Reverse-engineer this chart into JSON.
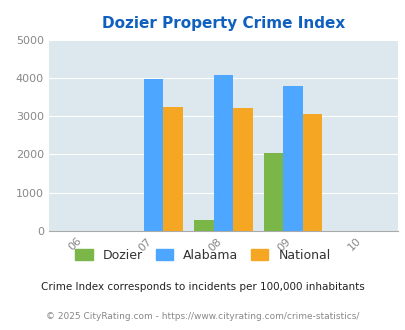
{
  "title": "Dozier Property Crime Index",
  "title_color": "#1060bf",
  "years": [
    2006,
    2007,
    2008,
    2009,
    2010
  ],
  "bar_years": [
    2007,
    2008,
    2009
  ],
  "dozier": [
    0,
    300,
    2050
  ],
  "alabama": [
    3970,
    4080,
    3775
  ],
  "national": [
    3250,
    3220,
    3050
  ],
  "dozier_color": "#7ab648",
  "alabama_color": "#4da6ff",
  "national_color": "#f5a623",
  "ylim": [
    0,
    5000
  ],
  "yticks": [
    0,
    1000,
    2000,
    3000,
    4000,
    5000
  ],
  "background_color": "#dce8ee",
  "legend_labels": [
    "Dozier",
    "Alabama",
    "National"
  ],
  "footnote1": "Crime Index corresponds to incidents per 100,000 inhabitants",
  "footnote2": "© 2025 CityRating.com - https://www.cityrating.com/crime-statistics/",
  "footnote1_color": "#222222",
  "footnote2_color": "#888888",
  "bar_width": 0.28
}
